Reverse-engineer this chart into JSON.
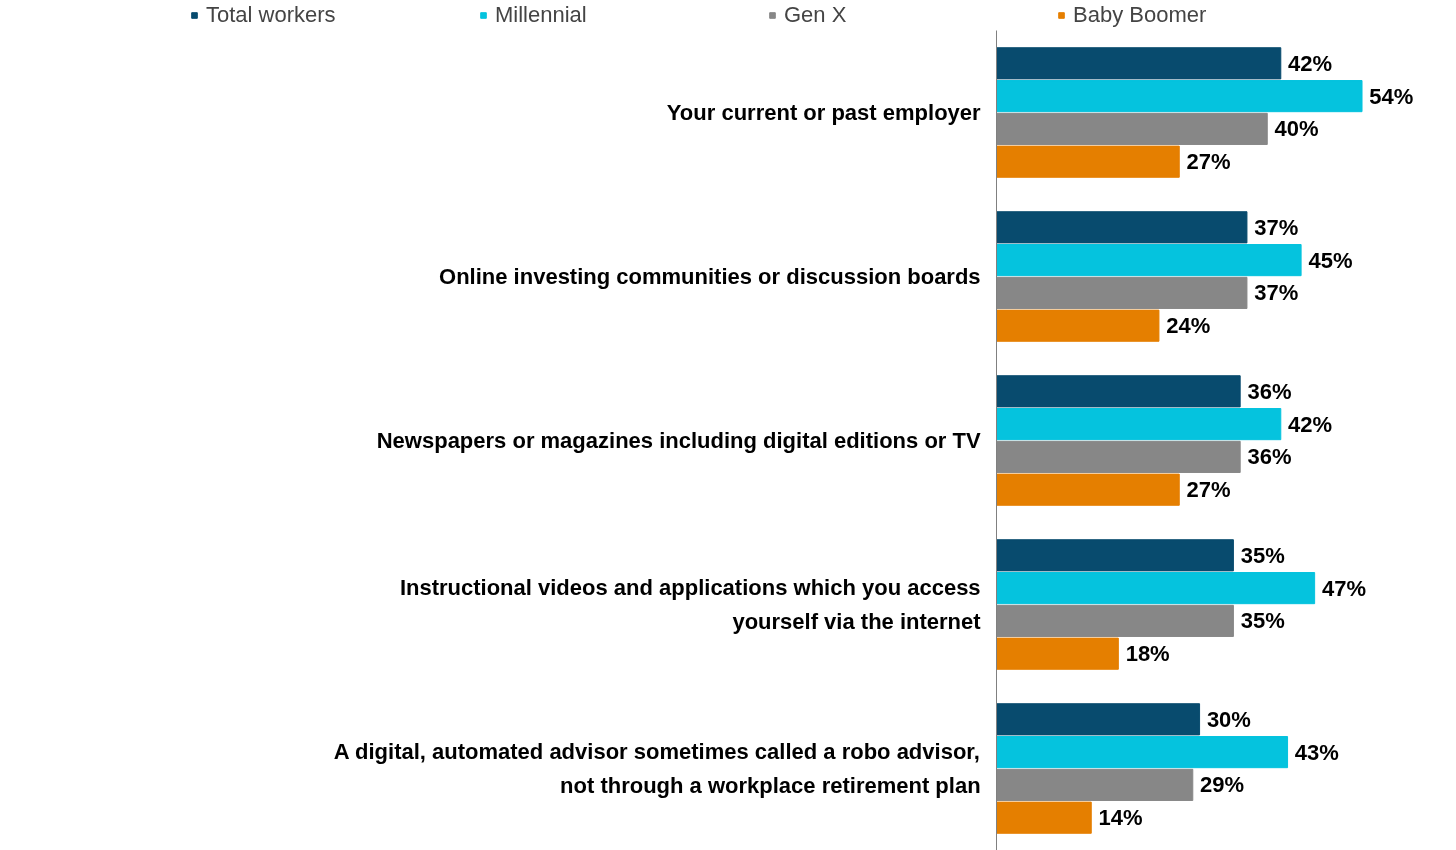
{
  "chart_data": {
    "type": "bar",
    "orientation": "horizontal",
    "categories": [
      "Your current or past employer",
      "Online investing communities or discussion boards",
      "Newspapers or magazines including digital editions or TV",
      "Instructional videos and applications which you access yourself via the internet",
      "A digital, automated advisor sometimes called a robo advisor, not through a workplace retirement plan"
    ],
    "series": [
      {
        "name": "Total workers",
        "color": "#084b6e",
        "values": [
          42,
          37,
          36,
          35,
          30
        ],
        "value_labels": [
          "42%",
          "37%",
          "36%",
          "35%",
          "30%"
        ]
      },
      {
        "name": "Millennial",
        "color": "#05c3de",
        "values": [
          54,
          45,
          42,
          47,
          43
        ],
        "value_labels": [
          "54%",
          "45%",
          "42%",
          "47%",
          "43%"
        ]
      },
      {
        "name": "Gen X",
        "color": "#878787",
        "values": [
          40,
          37,
          36,
          35,
          29
        ],
        "value_labels": [
          "40%",
          "37%",
          "36%",
          "35%",
          "29%"
        ]
      },
      {
        "name": "Baby Boomer",
        "color": "#e57f00",
        "values": [
          27,
          24,
          27,
          18,
          14
        ],
        "value_labels": [
          "27%",
          "24%",
          "27%",
          "18%",
          "14%"
        ]
      }
    ],
    "legend": "top",
    "grid": false
  }
}
